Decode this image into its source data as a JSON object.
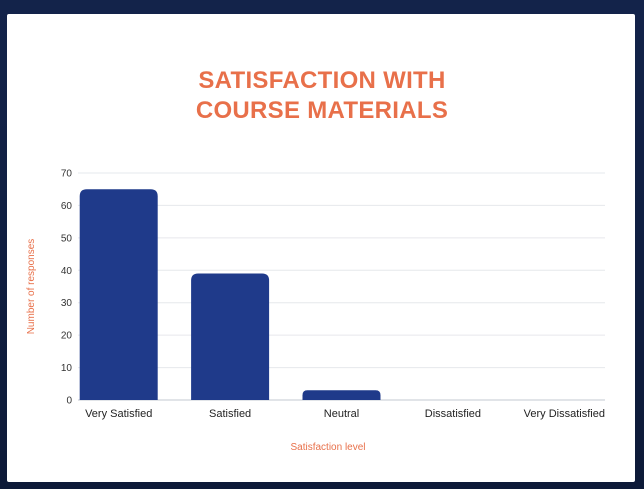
{
  "chart_data": {
    "type": "bar",
    "title_lines": [
      "SATISFACTION WITH",
      "COURSE MATERIALS"
    ],
    "xlabel": "Satisfaction level",
    "ylabel": "Number of responses",
    "categories": [
      "Very Satisfied",
      "Satisfied",
      "Neutral",
      "Dissatisfied",
      "Very Dissatisfied"
    ],
    "values": [
      65,
      39,
      3,
      0,
      0
    ],
    "ylim": [
      0,
      70
    ],
    "yticks": [
      0,
      10,
      20,
      30,
      40,
      50,
      60,
      70
    ],
    "grid": true,
    "legend": "none",
    "bar_color": "#1f3a8a",
    "accent_color": "#e8704a"
  }
}
